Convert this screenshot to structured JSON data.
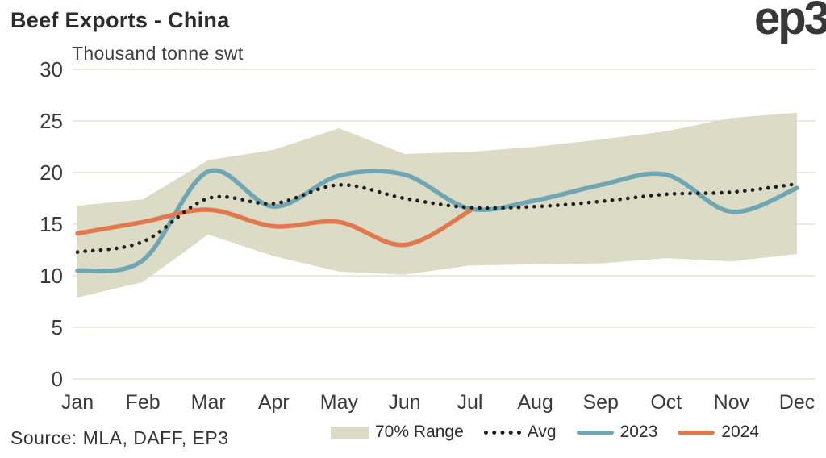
{
  "header": {
    "title": "Beef Exports - China",
    "logo_text": "ep3"
  },
  "footer": {
    "source": "Source: MLA, DAFF, EP3"
  },
  "legend": {
    "range": "70% Range",
    "avg": "Avg",
    "y2023": "2023",
    "y2024": "2024"
  },
  "colors": {
    "band": "#dcdbc6",
    "avg": "#1f1f1f",
    "y2023": "#6ea6b4",
    "y2024": "#e07a4e",
    "grid": "#ece9de",
    "axis_text": "#3b3b3b"
  },
  "chart_data": {
    "type": "line",
    "title": "Beef Exports - China",
    "ylabel": "Thousand tonne swt",
    "categories": [
      "Jan",
      "Feb",
      "Mar",
      "Apr",
      "May",
      "Jun",
      "Jul",
      "Aug",
      "Sep",
      "Oct",
      "Nov",
      "Dec"
    ],
    "series": [
      {
        "name": "70% Range",
        "type": "band",
        "lower": [
          7.9,
          9.4,
          14.0,
          11.9,
          10.4,
          10.1,
          11.0,
          11.1,
          11.2,
          11.7,
          11.4,
          12.1
        ],
        "upper": [
          16.8,
          17.4,
          21.2,
          22.2,
          24.3,
          21.8,
          22.0,
          22.5,
          23.2,
          24.0,
          25.3,
          25.8
        ]
      },
      {
        "name": "Avg",
        "type": "dotted-line",
        "values": [
          12.3,
          13.3,
          17.5,
          17.0,
          18.8,
          17.5,
          16.6,
          16.7,
          17.2,
          17.9,
          18.1,
          18.9
        ]
      },
      {
        "name": "2023",
        "type": "line",
        "values": [
          10.5,
          11.5,
          20.1,
          16.7,
          19.7,
          19.8,
          16.5,
          17.3,
          18.8,
          19.8,
          16.2,
          18.5
        ]
      },
      {
        "name": "2024",
        "type": "line",
        "values": [
          14.1,
          15.2,
          16.4,
          14.8,
          15.2,
          13.0,
          16.3
        ]
      }
    ],
    "ylim": [
      0,
      30
    ],
    "yticks": [
      0,
      5,
      10,
      15,
      20,
      25,
      30
    ],
    "grid": "horizontal",
    "legend_position": "bottom"
  }
}
